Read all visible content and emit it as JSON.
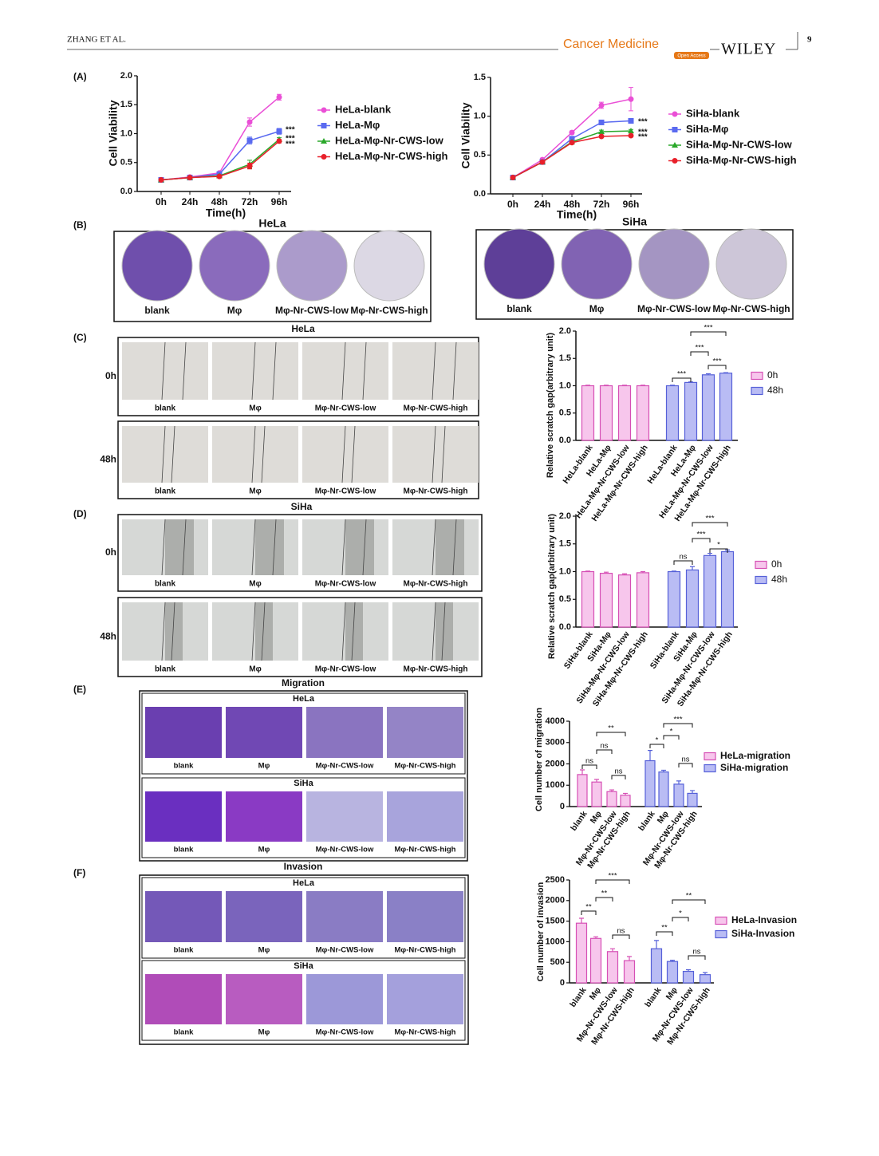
{
  "header": {
    "author": "ZHANG ET AL.",
    "journal": "Cancer Medicine",
    "badge": "Open Access",
    "publisher": "WILEY",
    "page": "9"
  },
  "panel_labels": [
    "(A)",
    "(B)",
    "(C)",
    "(D)",
    "(E)",
    "(F)"
  ],
  "chart_data": [
    {
      "type": "line",
      "ylabel": "Cell Viability",
      "xlabel": "Time(h)",
      "categories": [
        "0h",
        "24h",
        "48h",
        "72h",
        "96h"
      ],
      "ylim": [
        0,
        2
      ],
      "yticks": [
        {
          "value": 0,
          "label": "0.0"
        },
        0.5,
        {
          "value": 1,
          "label": "1.0"
        },
        1.5,
        {
          "value": 2,
          "label": "2.0"
        }
      ],
      "series": [
        {
          "name": "HeLa-blank",
          "color": "#ea4fd6",
          "marker": "circle",
          "values": [
            0.2,
            0.25,
            0.32,
            1.2,
            1.63
          ],
          "errors": [
            0.01,
            0.01,
            0.02,
            0.07,
            0.05
          ]
        },
        {
          "name": "HeLa-Mφ",
          "color": "#5a6af0",
          "marker": "square",
          "values": [
            0.2,
            0.24,
            0.3,
            0.88,
            1.04
          ],
          "errors": [
            0.01,
            0.01,
            0.01,
            0.06,
            0.05
          ]
        },
        {
          "name": "HeLa-Mφ-Nr-CWS-low",
          "color": "#2aa82a",
          "marker": "triangle",
          "values": [
            0.2,
            0.24,
            0.27,
            0.47,
            0.9
          ],
          "errors": [
            0.01,
            0.01,
            0.01,
            0.07,
            0.03
          ]
        },
        {
          "name": "HeLa-Mφ-Nr-CWS-high",
          "color": "#e8202a",
          "marker": "circle",
          "values": [
            0.2,
            0.24,
            0.26,
            0.44,
            0.87
          ],
          "errors": [
            0.01,
            0.01,
            0.01,
            0.05,
            0.03
          ]
        }
      ],
      "annotations": [
        "***",
        "***",
        "***"
      ]
    },
    {
      "type": "line",
      "ylabel": "Cell Viability",
      "xlabel": "Time(h)",
      "categories": [
        "0h",
        "24h",
        "48h",
        "72h",
        "96h"
      ],
      "ylim": [
        0,
        1.5
      ],
      "yticks": [
        {
          "value": 0,
          "label": "0.0"
        },
        0.5,
        {
          "value": 1,
          "label": "1.0"
        },
        1.5
      ],
      "series": [
        {
          "name": "SiHa-blank",
          "color": "#ea4fd6",
          "marker": "circle",
          "values": [
            0.21,
            0.44,
            0.79,
            1.14,
            1.22
          ],
          "errors": [
            0.02,
            0.02,
            0.02,
            0.04,
            0.15
          ]
        },
        {
          "name": "SiHa-Mφ",
          "color": "#5a6af0",
          "marker": "square",
          "values": [
            0.21,
            0.41,
            0.71,
            0.92,
            0.94
          ],
          "errors": [
            0.01,
            0.01,
            0.02,
            0.02,
            0.02
          ]
        },
        {
          "name": "SiHa-Mφ-Nr-CWS-low",
          "color": "#2aa82a",
          "marker": "triangle",
          "values": [
            0.21,
            0.41,
            0.67,
            0.8,
            0.81
          ],
          "errors": [
            0.01,
            0.01,
            0.01,
            0.02,
            0.02
          ]
        },
        {
          "name": "SiHa-Mφ-Nr-CWS-high",
          "color": "#e8202a",
          "marker": "circle",
          "values": [
            0.21,
            0.41,
            0.66,
            0.74,
            0.75
          ],
          "errors": [
            0.01,
            0.01,
            0.01,
            0.01,
            0.01
          ]
        }
      ],
      "annotations": [
        "***",
        "***",
        "***"
      ]
    },
    {
      "type": "bar",
      "ylabel": "Relative scratch gap(arbitrary unit)",
      "categories": [
        "HeLa-blank",
        "HeLa-Mφ",
        "HeLa-Mφ-Nr-CWS-low",
        "HeLa-Mφ-Nr-CWS-high",
        "HeLa-blank",
        "HeLa-Mφ",
        "HeLa-Mφ-Nr-CWS-low",
        "HeLa-Mφ-Nr-CWS-high"
      ],
      "ylim": [
        0,
        2
      ],
      "yticks": [
        {
          "value": 0,
          "label": "0.0"
        },
        0.5,
        {
          "value": 1,
          "label": "1.0"
        },
        1.5,
        {
          "value": 2,
          "label": "2.0"
        }
      ],
      "series": [
        {
          "name": "0h",
          "color": "#f7c6ec",
          "edge": "#d64fb5",
          "values": [
            1,
            1,
            1,
            1,
            null,
            null,
            null,
            null
          ],
          "errors": [
            0.01,
            0.01,
            0.01,
            0.01,
            null,
            null,
            null,
            null
          ]
        },
        {
          "name": "48h",
          "color": "#b9bcf4",
          "edge": "#5560d8",
          "values": [
            null,
            null,
            null,
            null,
            1,
            1.06,
            1.2,
            1.23
          ],
          "errors": [
            null,
            null,
            null,
            null,
            0.01,
            0.01,
            0.02,
            0.01
          ]
        }
      ],
      "annotations": [
        "***",
        "***",
        "***",
        "***"
      ]
    },
    {
      "type": "bar",
      "ylabel": "Relative scratch gap(arbitrary unit)",
      "categories": [
        "SiHa-blank",
        "SiHa-Mφ",
        "SiHa-Mφ-Nr-CWS-low",
        "SiHa-Mφ-Nr-CWS-high",
        "SiHa-blank",
        "SiHa-Mφ",
        "SiHa-Mφ-Nr-CWS-low",
        "SiHa-Mφ-Nr-CWS-high"
      ],
      "ylim": [
        0,
        2
      ],
      "yticks": [
        {
          "value": 0,
          "label": "0.0"
        },
        0.5,
        {
          "value": 1,
          "label": "1.0"
        },
        1.5,
        {
          "value": 2,
          "label": "2.0"
        }
      ],
      "series": [
        {
          "name": "0h",
          "color": "#f7c6ec",
          "edge": "#d64fb5",
          "values": [
            1,
            0.97,
            0.94,
            0.98,
            null,
            null,
            null,
            null
          ],
          "errors": [
            0.01,
            0.02,
            0.02,
            0.02,
            null,
            null,
            null,
            null
          ]
        },
        {
          "name": "48h",
          "color": "#b9bcf4",
          "edge": "#5560d8",
          "values": [
            null,
            null,
            null,
            null,
            1,
            1.03,
            1.29,
            1.36
          ],
          "errors": [
            null,
            null,
            null,
            null,
            0.01,
            0.06,
            0.04,
            0.03
          ]
        }
      ],
      "annotations": [
        "ns",
        "***",
        "*",
        "***"
      ]
    },
    {
      "type": "bar",
      "ylabel": "Cell number of migration",
      "categories": [
        "blank",
        "Mφ",
        "Mφ-Nr-CWS-low",
        "Mφ-Nr-CWS-high",
        "blank",
        "Mφ",
        "Mφ-Nr-CWS-low",
        "Mφ-Nr-CWS-high"
      ],
      "ylim": [
        0,
        4000
      ],
      "yticks": [
        0,
        1000,
        2000,
        3000,
        4000
      ],
      "series": [
        {
          "name": "HeLa-migration",
          "color": "#f7c6ec",
          "edge": "#d64fb5",
          "values": [
            1500,
            1150,
            700,
            530,
            null,
            null,
            null,
            null
          ],
          "errors": [
            220,
            120,
            80,
            90,
            null,
            null,
            null,
            null
          ]
        },
        {
          "name": "SiHa-migration",
          "color": "#b9bcf4",
          "edge": "#5560d8",
          "values": [
            null,
            null,
            null,
            null,
            2150,
            1620,
            1050,
            620
          ],
          "errors": [
            null,
            null,
            null,
            null,
            480,
            80,
            150,
            130
          ]
        }
      ],
      "annotations": [
        "ns",
        "ns",
        "ns",
        "**",
        "*",
        "*",
        "ns",
        "***"
      ]
    },
    {
      "type": "bar",
      "ylabel": "Cell number of invasion",
      "categories": [
        "blank",
        "Mφ",
        "Mφ-Nr-CWS-low",
        "Mφ-Nr-CWS-high",
        "blank",
        "Mφ",
        "Mφ-Nr-CWS-low",
        "Mφ-Nr-CWS-high"
      ],
      "ylim": [
        0,
        2500
      ],
      "yticks": [
        0,
        500,
        1000,
        1500,
        2000,
        2500
      ],
      "series": [
        {
          "name": "HeLa-Invasion",
          "color": "#f7c6ec",
          "edge": "#d64fb5",
          "values": [
            1450,
            1080,
            760,
            540,
            null,
            null,
            null,
            null
          ],
          "errors": [
            120,
            40,
            70,
            100,
            null,
            null,
            null,
            null
          ]
        },
        {
          "name": "SiHa-Invasion",
          "color": "#b9bcf4",
          "edge": "#5560d8",
          "values": [
            null,
            null,
            null,
            null,
            830,
            520,
            280,
            200
          ],
          "errors": [
            null,
            null,
            null,
            null,
            200,
            30,
            40,
            50
          ]
        }
      ],
      "annotations": [
        "**",
        "**",
        "***",
        "ns",
        "**",
        "*",
        "**",
        "ns"
      ]
    }
  ],
  "colony_panels": [
    {
      "title": "HeLa",
      "labels": [
        "blank",
        "Mφ",
        "Mφ-Nr-CWS-low",
        "Mφ-Nr-CWS-high"
      ]
    },
    {
      "title": "SiHa",
      "labels": [
        "blank",
        "Mφ",
        "Mφ-Nr-CWS-low",
        "Mφ-Nr-CWS-high"
      ]
    }
  ],
  "scratch_panels": [
    {
      "title": "HeLa",
      "rows": [
        {
          "label": "0h",
          "images": [
            "blank",
            "Mφ",
            "Mφ-Nr-CWS-low",
            "Mφ-Nr-CWS-high"
          ]
        },
        {
          "label": "48h",
          "images": [
            "blank",
            "Mφ",
            "Mφ-Nr-CWS-low",
            "Mφ-Nr-CWS-high"
          ]
        }
      ]
    },
    {
      "title": "SiHa",
      "rows": [
        {
          "label": "0h",
          "images": [
            "blank",
            "Mφ",
            "Mφ-Nr-CWS-low",
            "Mφ-Nr-CWS-high"
          ]
        },
        {
          "label": "48h",
          "images": [
            "blank",
            "Mφ",
            "Mφ-Nr-CWS-low",
            "Mφ-Nr-CWS-high"
          ]
        }
      ]
    }
  ],
  "transwell_panels": [
    {
      "title": "Migration",
      "groups": [
        {
          "title": "HeLa",
          "labels": [
            "blank",
            "Mφ",
            "Mφ-Nr-CWS-low",
            "Mφ-Nr-CWS-high"
          ]
        },
        {
          "title": "SiHa",
          "labels": [
            "blank",
            "Mφ",
            "Mφ-Nr-CWS-low",
            "Mφ-Nr-CWS-high"
          ]
        }
      ]
    },
    {
      "title": "Invasion",
      "groups": [
        {
          "title": "HeLa",
          "labels": [
            "blank",
            "Mφ",
            "Mφ-Nr-CWS-low",
            "Mφ-Nr-CWS-high"
          ]
        },
        {
          "title": "SiHa",
          "labels": [
            "blank",
            "Mφ",
            "Mφ-Nr-CWS-low",
            "Mφ-Nr-CWS-high"
          ]
        }
      ]
    }
  ]
}
